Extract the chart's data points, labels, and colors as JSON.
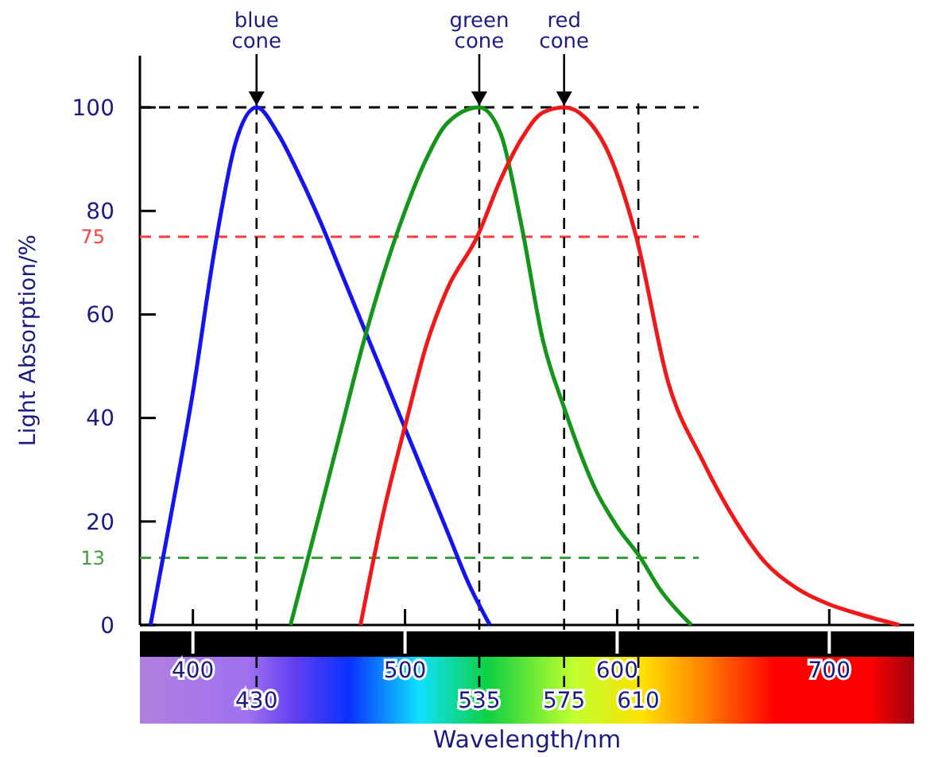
{
  "chart_data": {
    "type": "line",
    "xlabel": "Wavelength/nm",
    "ylabel": "Light Absorption/%",
    "xlim": [
      375,
      740
    ],
    "ylim": [
      0,
      110
    ],
    "xticks": [
      400,
      500,
      600,
      700
    ],
    "yticks": [
      0,
      20,
      40,
      60,
      80,
      100
    ],
    "grid": false,
    "marker": "none",
    "line_style": "solid",
    "series": [
      {
        "color": "#1414f0",
        "x": [
          380,
          390,
          400,
          410,
          420,
          430,
          440,
          450,
          460,
          470,
          480,
          490,
          500,
          510,
          520,
          530,
          540
        ],
        "values": [
          0,
          22,
          45,
          72,
          93,
          100,
          95,
          87,
          78,
          68,
          58,
          48,
          38,
          28,
          18,
          8,
          0
        ]
      },
      {
        "color": "#15951a",
        "x": [
          446,
          460,
          470,
          480,
          490,
          500,
          510,
          520,
          535,
          545,
          555,
          565,
          575,
          590,
          600,
          611,
          620,
          635
        ],
        "values": [
          0,
          22,
          38,
          54,
          68,
          80,
          90,
          97,
          100,
          95,
          77,
          55,
          42,
          26,
          19,
          13,
          7,
          0
        ]
      },
      {
        "color": "#f01818",
        "x": [
          479,
          490,
          501,
          510,
          520,
          534,
          545,
          555,
          565,
          575,
          585,
          595,
          609,
          624,
          640,
          656,
          670,
          685,
          700,
          715,
          733
        ],
        "values": [
          0,
          22,
          40,
          54,
          65,
          75,
          86,
          94,
          99,
          100,
          98,
          92,
          75,
          47,
          32,
          20,
          12,
          7,
          4,
          2,
          0
        ]
      }
    ],
    "ref_lines": [
      {
        "axis": "y",
        "value": 100,
        "label": null,
        "color": "#000000",
        "line_style": "dashed"
      },
      {
        "axis": "y",
        "value": 75,
        "label": "75",
        "color": "#ff4040",
        "line_style": "dashed"
      },
      {
        "axis": "y",
        "value": 13,
        "label": "13",
        "color": "#3ca03c",
        "line_style": "dashed"
      },
      {
        "axis": "x",
        "value": 430,
        "label": "430",
        "color": "#000000",
        "line_style": "dashed"
      },
      {
        "axis": "x",
        "value": 535,
        "label": "535",
        "color": "#000000",
        "line_style": "dashed"
      },
      {
        "axis": "x",
        "value": 575,
        "label": "575",
        "color": "#000000",
        "line_style": "dashed"
      },
      {
        "axis": "x",
        "value": 610,
        "label": "610",
        "color": "#000000",
        "line_style": "dashed"
      }
    ],
    "annotations": [
      {
        "text": "blue cone",
        "x": 430,
        "y": 100
      },
      {
        "text": "green cone",
        "x": 535,
        "y": 100
      },
      {
        "text": "red cone",
        "x": 575,
        "y": 100
      }
    ]
  }
}
